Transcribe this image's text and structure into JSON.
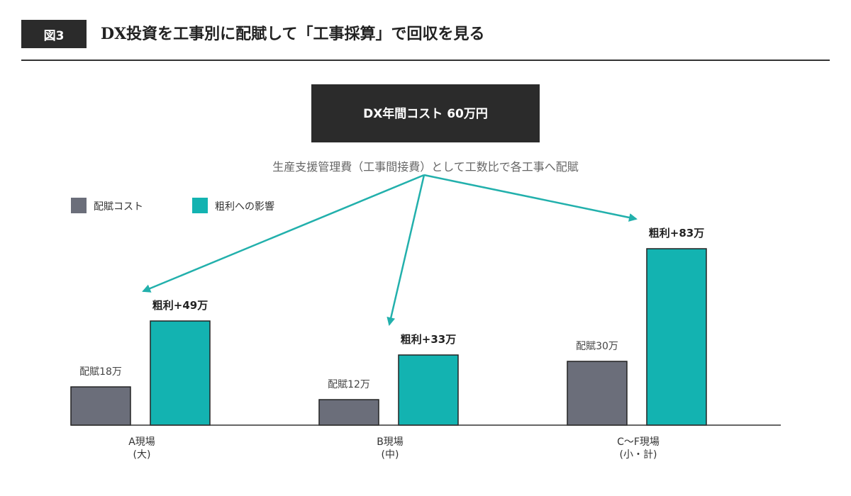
{
  "header": {
    "badge": "図3",
    "title": "DX投資を工事別に配賦して「工事採算」で回収を見る"
  },
  "cost_box": {
    "label": "DX年間コスト 60万円"
  },
  "allocation_note": "生産支援管理費（工事間接費）として工数比で各工事へ配賦",
  "legend": {
    "items": [
      {
        "label": "配賦コスト",
        "color": "#6b6e7a"
      },
      {
        "label": "粗利への影響",
        "color": "#13b3b1"
      }
    ]
  },
  "colors": {
    "cost": "#6b6e7a",
    "profit": "#13b3b1",
    "arrow": "#22b0ac",
    "dark": "#2b2b2b",
    "axis": "#333333"
  },
  "chart_data": {
    "type": "bar",
    "unit": "万円",
    "categories": [
      {
        "line1": "A現場",
        "line2": "(大)"
      },
      {
        "line1": "B現場",
        "line2": "(中)"
      },
      {
        "line1": "C〜F現場",
        "line2": "(小・計)"
      }
    ],
    "series": [
      {
        "name": "配賦コスト",
        "values": [
          18,
          12,
          30
        ],
        "data_labels": [
          "配賦18万",
          "配賦12万",
          "配賦30万"
        ]
      },
      {
        "name": "粗利への影響",
        "values": [
          49,
          33,
          83
        ],
        "data_labels": [
          "粗利+49万",
          "粗利+33万",
          "粗利+83万"
        ]
      }
    ],
    "ylim": [
      0,
      83
    ],
    "grid": false,
    "legend_position": "top-left"
  }
}
